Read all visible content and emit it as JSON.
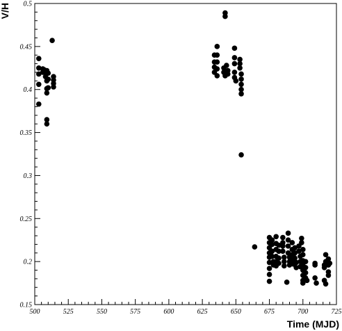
{
  "chart_data": {
    "type": "scatter",
    "title": "",
    "xlabel": "Time (MJD)",
    "ylabel": "V/H",
    "xlim": [
      500,
      725
    ],
    "ylim": [
      0.15,
      0.5
    ],
    "x_ticks": [
      "500",
      "525",
      "550",
      "575",
      "600",
      "625",
      "650",
      "675",
      "700",
      "725"
    ],
    "y_ticks": [
      "0.15",
      "0.2",
      "0.25",
      "0.3",
      "0.35",
      "0.4",
      "0.45",
      "0.5"
    ],
    "grid": false,
    "marker_color": "#000000",
    "points": [
      [
        503,
        0.436
      ],
      [
        503,
        0.425
      ],
      [
        503,
        0.418
      ],
      [
        503,
        0.406
      ],
      [
        503,
        0.383
      ],
      [
        506,
        0.424
      ],
      [
        506,
        0.42
      ],
      [
        507,
        0.423
      ],
      [
        508,
        0.419
      ],
      [
        508,
        0.415
      ],
      [
        509,
        0.422
      ],
      [
        509,
        0.41
      ],
      [
        509,
        0.401
      ],
      [
        509,
        0.396
      ],
      [
        509,
        0.365
      ],
      [
        509,
        0.36
      ],
      [
        510,
        0.419
      ],
      [
        510,
        0.412
      ],
      [
        510,
        0.402
      ],
      [
        513,
        0.457
      ],
      [
        514,
        0.415
      ],
      [
        514,
        0.411
      ],
      [
        514,
        0.407
      ],
      [
        514,
        0.403
      ],
      [
        634,
        0.44
      ],
      [
        634,
        0.432
      ],
      [
        634,
        0.426
      ],
      [
        634,
        0.42
      ],
      [
        636,
        0.45
      ],
      [
        636,
        0.44
      ],
      [
        636,
        0.432
      ],
      [
        636,
        0.424
      ],
      [
        636,
        0.416
      ],
      [
        642,
        0.489
      ],
      [
        642,
        0.485
      ],
      [
        641,
        0.425
      ],
      [
        641,
        0.42
      ],
      [
        642,
        0.416
      ],
      [
        643,
        0.428
      ],
      [
        644,
        0.422
      ],
      [
        644,
        0.418
      ],
      [
        649,
        0.448
      ],
      [
        649,
        0.437
      ],
      [
        649,
        0.43
      ],
      [
        649,
        0.42
      ],
      [
        649,
        0.414
      ],
      [
        650,
        0.41
      ],
      [
        653,
        0.435
      ],
      [
        653,
        0.43
      ],
      [
        653,
        0.425
      ],
      [
        654,
        0.418
      ],
      [
        654,
        0.412
      ],
      [
        654,
        0.406
      ],
      [
        654,
        0.4
      ],
      [
        654,
        0.395
      ],
      [
        654,
        0.324
      ],
      [
        664,
        0.217
      ],
      [
        675,
        0.228
      ],
      [
        675,
        0.222
      ],
      [
        675,
        0.216
      ],
      [
        675,
        0.21
      ],
      [
        675,
        0.205
      ],
      [
        675,
        0.199
      ],
      [
        675,
        0.192
      ],
      [
        675,
        0.185
      ],
      [
        675,
        0.177
      ],
      [
        677,
        0.225
      ],
      [
        677,
        0.22
      ],
      [
        677,
        0.212
      ],
      [
        677,
        0.206
      ],
      [
        678,
        0.2
      ],
      [
        678,
        0.196
      ],
      [
        680,
        0.229
      ],
      [
        680,
        0.221
      ],
      [
        680,
        0.214
      ],
      [
        680,
        0.206
      ],
      [
        680,
        0.2
      ],
      [
        680,
        0.195
      ],
      [
        682,
        0.219
      ],
      [
        682,
        0.212
      ],
      [
        682,
        0.204
      ],
      [
        682,
        0.198
      ],
      [
        685,
        0.228
      ],
      [
        685,
        0.222
      ],
      [
        685,
        0.218
      ],
      [
        685,
        0.212
      ],
      [
        686,
        0.205
      ],
      [
        686,
        0.2
      ],
      [
        686,
        0.195
      ],
      [
        688,
        0.176
      ],
      [
        689,
        0.233
      ],
      [
        689,
        0.225
      ],
      [
        689,
        0.218
      ],
      [
        689,
        0.21
      ],
      [
        690,
        0.205
      ],
      [
        690,
        0.2
      ],
      [
        690,
        0.196
      ],
      [
        692,
        0.222
      ],
      [
        692,
        0.214
      ],
      [
        692,
        0.208
      ],
      [
        692,
        0.202
      ],
      [
        693,
        0.197
      ],
      [
        694,
        0.216
      ],
      [
        694,
        0.21
      ],
      [
        694,
        0.204
      ],
      [
        695,
        0.199
      ],
      [
        695,
        0.193
      ],
      [
        697,
        0.218
      ],
      [
        697,
        0.212
      ],
      [
        698,
        0.206
      ],
      [
        698,
        0.2
      ],
      [
        698,
        0.194
      ],
      [
        699,
        0.227
      ],
      [
        699,
        0.222
      ],
      [
        700,
        0.214
      ],
      [
        700,
        0.208
      ],
      [
        700,
        0.201
      ],
      [
        700,
        0.196
      ],
      [
        700,
        0.19
      ],
      [
        700,
        0.184
      ],
      [
        700,
        0.178
      ],
      [
        700,
        0.175
      ],
      [
        702,
        0.2
      ],
      [
        702,
        0.193
      ],
      [
        702,
        0.187
      ],
      [
        702,
        0.181
      ],
      [
        703,
        0.178
      ],
      [
        709,
        0.198
      ],
      [
        709,
        0.196
      ],
      [
        709,
        0.181
      ],
      [
        710,
        0.175
      ],
      [
        716,
        0.196
      ],
      [
        716,
        0.193
      ],
      [
        716,
        0.178
      ],
      [
        717,
        0.208
      ],
      [
        717,
        0.2
      ],
      [
        717,
        0.174
      ],
      [
        719,
        0.203
      ],
      [
        719,
        0.196
      ],
      [
        719,
        0.188
      ],
      [
        719,
        0.184
      ],
      [
        720,
        0.198
      ]
    ]
  }
}
